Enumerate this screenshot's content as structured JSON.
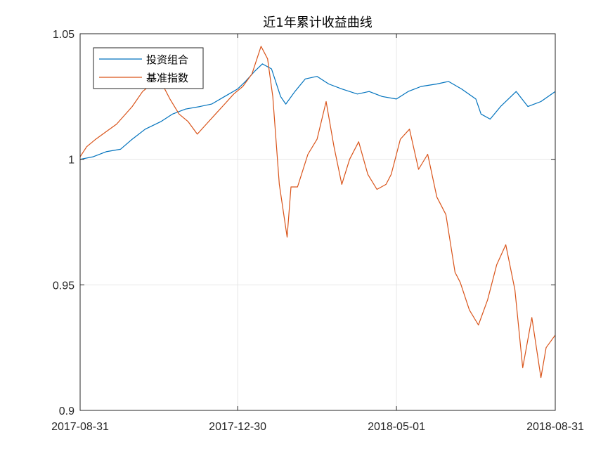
{
  "chart_data": {
    "type": "line",
    "title": "近1年累计收益曲线",
    "xlabel": "",
    "ylabel": "",
    "xlim": [
      "2017-08-31",
      "2018-08-31"
    ],
    "ylim": [
      0.9,
      1.05
    ],
    "x_ticks": [
      "2017-08-31",
      "2017-12-30",
      "2018-05-01",
      "2018-08-31"
    ],
    "y_ticks": [
      0.9,
      0.95,
      1,
      1.05
    ],
    "y_tick_labels": [
      "0.9",
      "0.95",
      "1",
      "1.05"
    ],
    "grid": true,
    "legend_position": "top-left",
    "series": [
      {
        "name": "投资组合",
        "color": "#0072BD",
        "x": [
          "2017-08-31",
          "2017-09-10",
          "2017-09-20",
          "2017-10-01",
          "2017-10-10",
          "2017-10-20",
          "2017-11-01",
          "2017-11-10",
          "2017-11-20",
          "2017-12-01",
          "2017-12-10",
          "2017-12-20",
          "2017-12-30",
          "2018-01-05",
          "2018-01-12",
          "2018-01-18",
          "2018-01-25",
          "2018-02-01",
          "2018-02-05",
          "2018-02-12",
          "2018-02-20",
          "2018-03-01",
          "2018-03-10",
          "2018-03-20",
          "2018-04-01",
          "2018-04-10",
          "2018-04-20",
          "2018-05-01",
          "2018-05-10",
          "2018-05-20",
          "2018-06-01",
          "2018-06-10",
          "2018-06-20",
          "2018-07-01",
          "2018-07-05",
          "2018-07-12",
          "2018-07-20",
          "2018-08-01",
          "2018-08-10",
          "2018-08-20",
          "2018-08-31"
        ],
        "values": [
          1.0,
          1.001,
          1.003,
          1.004,
          1.008,
          1.012,
          1.015,
          1.018,
          1.02,
          1.021,
          1.022,
          1.025,
          1.028,
          1.031,
          1.035,
          1.038,
          1.036,
          1.025,
          1.022,
          1.027,
          1.032,
          1.033,
          1.03,
          1.028,
          1.026,
          1.027,
          1.025,
          1.024,
          1.027,
          1.029,
          1.03,
          1.031,
          1.028,
          1.024,
          1.018,
          1.016,
          1.021,
          1.027,
          1.021,
          1.023,
          1.027
        ]
      },
      {
        "name": "基准指数",
        "color": "#D95319",
        "x": [
          "2017-08-31",
          "2017-09-05",
          "2017-09-12",
          "2017-09-20",
          "2017-09-28",
          "2017-10-10",
          "2017-10-18",
          "2017-10-25",
          "2017-11-01",
          "2017-11-08",
          "2017-11-15",
          "2017-11-22",
          "2017-11-29",
          "2017-12-06",
          "2017-12-13",
          "2017-12-20",
          "2017-12-27",
          "2018-01-03",
          "2018-01-10",
          "2018-01-17",
          "2018-01-22",
          "2018-01-26",
          "2018-01-31",
          "2018-02-06",
          "2018-02-09",
          "2018-02-14",
          "2018-02-22",
          "2018-03-01",
          "2018-03-08",
          "2018-03-14",
          "2018-03-20",
          "2018-03-26",
          "2018-04-02",
          "2018-04-09",
          "2018-04-16",
          "2018-04-23",
          "2018-04-27",
          "2018-05-04",
          "2018-05-11",
          "2018-05-18",
          "2018-05-25",
          "2018-06-01",
          "2018-06-08",
          "2018-06-15",
          "2018-06-19",
          "2018-06-26",
          "2018-07-03",
          "2018-07-10",
          "2018-07-17",
          "2018-07-24",
          "2018-07-31",
          "2018-08-06",
          "2018-08-13",
          "2018-08-20",
          "2018-08-24",
          "2018-08-31"
        ],
        "values": [
          1.001,
          1.005,
          1.008,
          1.011,
          1.014,
          1.021,
          1.027,
          1.03,
          1.031,
          1.024,
          1.018,
          1.015,
          1.01,
          1.014,
          1.018,
          1.022,
          1.026,
          1.029,
          1.034,
          1.045,
          1.04,
          1.025,
          0.99,
          0.969,
          0.989,
          0.989,
          1.002,
          1.008,
          1.023,
          1.005,
          0.99,
          1.0,
          1.007,
          0.994,
          0.988,
          0.99,
          0.994,
          1.008,
          1.012,
          0.996,
          1.002,
          0.985,
          0.978,
          0.955,
          0.951,
          0.94,
          0.934,
          0.944,
          0.958,
          0.966,
          0.948,
          0.917,
          0.937,
          0.913,
          0.925,
          0.93
        ]
      }
    ]
  }
}
